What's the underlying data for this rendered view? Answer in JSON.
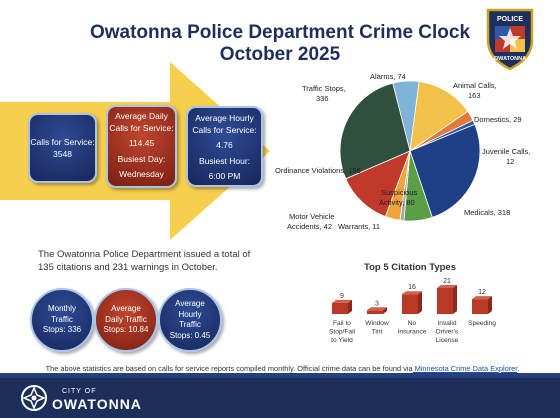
{
  "header": {
    "title_line1": "Owatonna Police Department Crime Clock",
    "title_line2": "October 2025",
    "badge_text_top": "POLICE",
    "badge_text_bottom": "OWATONNA"
  },
  "stats_boxes": [
    {
      "label": "Calls for Service:",
      "value": "3548"
    },
    {
      "label": "Average Daily Calls for Service:",
      "value": "114.45",
      "sub_label": "Busiest Day:",
      "sub_value": "Wednesday"
    },
    {
      "label": "Average Hourly Calls for Service:",
      "value": "4.76",
      "sub_label": "Busiest Hour:",
      "sub_value": "6:00 PM"
    }
  ],
  "chart_data": [
    {
      "type": "pie",
      "slices": [
        {
          "name": "Alarms",
          "value": 74,
          "color": "#7fb3d8"
        },
        {
          "name": "Animal Calls",
          "value": 163,
          "color": "#f3c14a"
        },
        {
          "name": "Domestics",
          "value": 29,
          "color": "#e07a3c"
        },
        {
          "name": "Juvenile Calls",
          "value": 12,
          "color": "#2f58a6"
        },
        {
          "name": "Medicals",
          "value": 318,
          "color": "#1f3f86"
        },
        {
          "name": "Suspicious Activity",
          "value": 80,
          "color": "#5a9e47"
        },
        {
          "name": "Warrants",
          "value": 11,
          "color": "#a5a5a5"
        },
        {
          "name": "Motor Vehicle Accidents",
          "value": 42,
          "color": "#f0a43a"
        },
        {
          "name": "Ordinance Violations",
          "value": 156,
          "color": "#c0392b"
        },
        {
          "name": "Traffic Stops",
          "value": 336,
          "color": "#2f4f3f"
        }
      ],
      "labels": [
        {
          "text": "Alarms, 74"
        },
        {
          "text": "Animal Calls,"
        },
        {
          "text": "163"
        },
        {
          "text": "Domestics, 29"
        },
        {
          "text": "Juvenile Calls,"
        },
        {
          "text": "12"
        },
        {
          "text": "Medicals, 318"
        },
        {
          "text": "Suspicious"
        },
        {
          "text": "Activity, 80"
        },
        {
          "text": "Warrants, 11"
        },
        {
          "text": "Motor Vehicle"
        },
        {
          "text": "Accidents, 42"
        },
        {
          "text": "Ordinance Violations, 156"
        },
        {
          "text": "Traffic Stops,"
        },
        {
          "text": "336"
        }
      ]
    },
    {
      "type": "bar",
      "title": "Top 5 Citation Types",
      "categories": [
        "Fail to Stop/Fail to Yield",
        "Window Tint",
        "No Insurance",
        "Invalid Driver's License",
        "Speeding"
      ],
      "category_lines": [
        [
          "Fail to",
          "Stop/Fail",
          "to Yield"
        ],
        [
          "Window",
          "Tint"
        ],
        [
          "No",
          "Insurance"
        ],
        [
          "Invalid",
          "Driver's",
          "License"
        ],
        [
          "Speeding"
        ]
      ],
      "values": [
        9,
        3,
        16,
        21,
        12
      ],
      "color": "#b83a26",
      "ylim": [
        0,
        21
      ]
    }
  ],
  "summary": {
    "text": "The Owatonna Police Department issued a total of 135 citations and 231 warnings in October."
  },
  "circles": [
    {
      "line1": "Monthly",
      "line2": "Traffic",
      "line3": "Stops: 336"
    },
    {
      "line1": "Average",
      "line2": "Daily Traffic",
      "line3": "Stops: 10.84"
    },
    {
      "line1": "Average",
      "line2": "Hourly",
      "line3": "Traffic",
      "line4": "Stops: 0.45"
    }
  ],
  "footnote": {
    "text": "The above statistics are based on calls for service reports compiled monthly.  Official crime data can be found via",
    "link": " Minnesota Crime Data Explorer",
    "end": "."
  },
  "footer": {
    "city_small": "CITY OF",
    "city_big": "OWATONNA"
  },
  "colors": {
    "navy": "#1d2f5c",
    "arrow": "#f6cf4c",
    "red": "#b83a26"
  }
}
